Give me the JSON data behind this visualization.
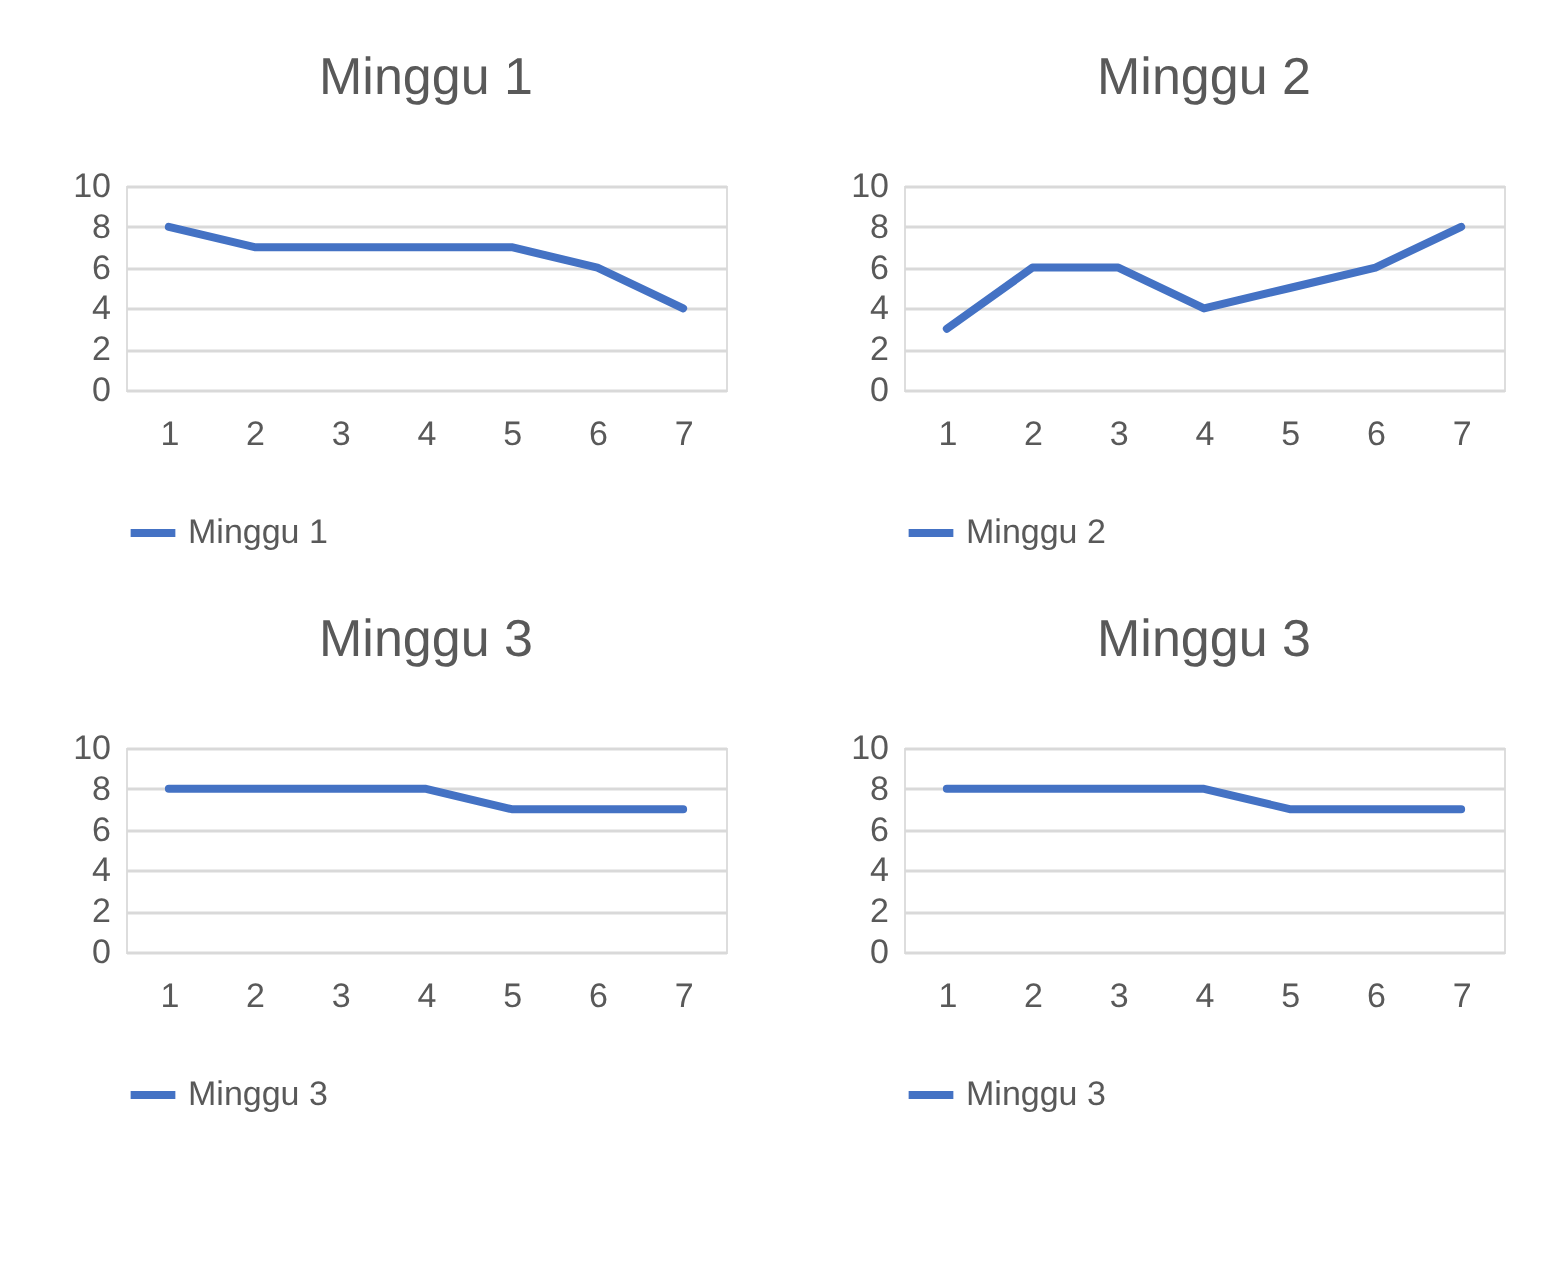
{
  "chart_data": [
    {
      "type": "line",
      "title": "Minggu 1",
      "categories": [
        "1",
        "2",
        "3",
        "4",
        "5",
        "6",
        "7"
      ],
      "series": [
        {
          "name": "Minggu 1",
          "color": "#4472c4",
          "values": [
            8,
            7,
            7,
            7,
            7,
            6,
            4
          ]
        }
      ],
      "ylim": [
        0,
        10
      ],
      "yticks": [
        0,
        2,
        4,
        6,
        8,
        10
      ],
      "grid": "y",
      "legend": "bottom"
    },
    {
      "type": "line",
      "title": "Minggu 2",
      "categories": [
        "1",
        "2",
        "3",
        "4",
        "5",
        "6",
        "7"
      ],
      "series": [
        {
          "name": "Minggu 2",
          "color": "#4472c4",
          "values": [
            3,
            6,
            6,
            4,
            5,
            6,
            8
          ]
        }
      ],
      "ylim": [
        0,
        10
      ],
      "yticks": [
        0,
        2,
        4,
        6,
        8,
        10
      ],
      "grid": "y",
      "legend": "bottom"
    },
    {
      "type": "line",
      "title": "Minggu 3",
      "categories": [
        "1",
        "2",
        "3",
        "4",
        "5",
        "6",
        "7"
      ],
      "series": [
        {
          "name": "Minggu 3",
          "color": "#4472c4",
          "values": [
            8,
            8,
            8,
            8,
            7,
            7,
            7
          ]
        }
      ],
      "ylim": [
        0,
        10
      ],
      "yticks": [
        0,
        2,
        4,
        6,
        8,
        10
      ],
      "grid": "y",
      "legend": "bottom"
    },
    {
      "type": "line",
      "title": "Minggu 3",
      "categories": [
        "1",
        "2",
        "3",
        "4",
        "5",
        "6",
        "7"
      ],
      "series": [
        {
          "name": "Minggu 3",
          "color": "#4472c4",
          "values": [
            8,
            8,
            8,
            8,
            7,
            7,
            7
          ]
        }
      ],
      "ylim": [
        0,
        10
      ],
      "yticks": [
        0,
        2,
        4,
        6,
        8,
        10
      ],
      "grid": "y",
      "legend": "bottom"
    }
  ]
}
